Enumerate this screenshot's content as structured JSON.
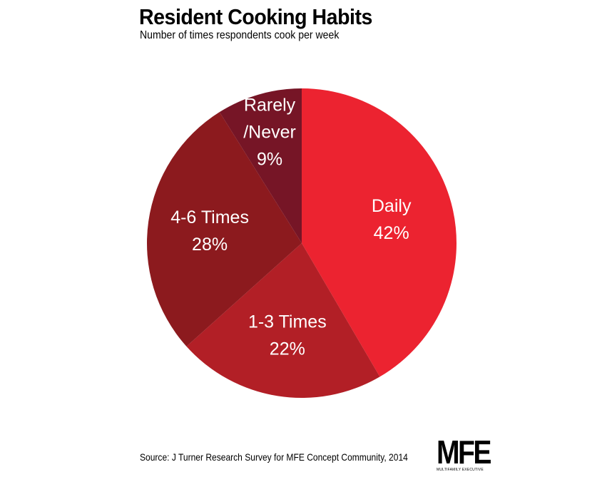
{
  "chart_data": {
    "type": "pie",
    "title": "Resident Cooking Habits",
    "subtitle": "Number of times respondents cook per week",
    "slices": [
      {
        "label": "Daily",
        "value": 42,
        "display": "42%",
        "color": "#ec2330"
      },
      {
        "label": "1-3 Times",
        "value": 22,
        "display": "22%",
        "color": "#b21f26"
      },
      {
        "label": "4-6 Times",
        "value": 28,
        "display": "28%",
        "color": "#8c1a1e"
      },
      {
        "label": "Rarely /Never",
        "value": 9,
        "display": "9%",
        "color": "#761526"
      }
    ]
  },
  "source": "Source: J Turner Research Survey for MFE Concept Community, 2014",
  "logo": {
    "text": "MFE",
    "tagline": "MULTIFAMILY EXECUTIVE"
  }
}
